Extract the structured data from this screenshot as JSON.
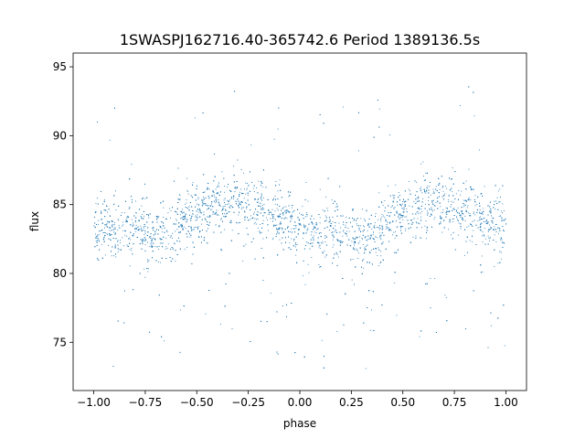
{
  "chart_data": {
    "type": "scatter",
    "title": "1SWASPJ162716.40-365742.6 Period 1389136.5s",
    "xlabel": "phase",
    "ylabel": "flux",
    "xlim": [
      -1.1,
      1.1
    ],
    "ylim": [
      71.5,
      96
    ],
    "x_ticks": [
      -1.0,
      -0.75,
      -0.5,
      -0.25,
      0.0,
      0.25,
      0.5,
      0.75,
      1.0
    ],
    "x_tick_labels": [
      "−1.00",
      "−0.75",
      "−0.50",
      "−0.25",
      "0.00",
      "0.25",
      "0.50",
      "0.75",
      "1.00"
    ],
    "y_ticks": [
      75,
      80,
      85,
      90,
      95
    ],
    "y_tick_labels": [
      "75",
      "80",
      "85",
      "90",
      "95"
    ],
    "grid": false,
    "legend": "none",
    "marker_color": "#1f77b4",
    "series": [
      {
        "phase_range": [
          -1.0,
          1.0
        ],
        "typical_flux_range": [
          80,
          88
        ],
        "median_flux_by_phase": {
          "x": [
            -1.0,
            -0.9,
            -0.8,
            -0.7,
            -0.6,
            -0.5,
            -0.4,
            -0.3,
            -0.2,
            -0.1,
            0.0,
            0.1,
            0.2,
            0.3,
            0.4,
            0.5,
            0.6,
            0.7,
            0.8,
            0.9,
            1.0
          ],
          "y": [
            83.5,
            83.0,
            83.5,
            82.5,
            83.5,
            84.5,
            85.0,
            85.2,
            84.8,
            84.0,
            83.5,
            83.0,
            83.5,
            82.5,
            83.5,
            84.5,
            85.0,
            85.2,
            84.8,
            84.0,
            83.5
          ]
        },
        "outlier_flux_range": [
          72.7,
          94.6
        ]
      }
    ]
  }
}
